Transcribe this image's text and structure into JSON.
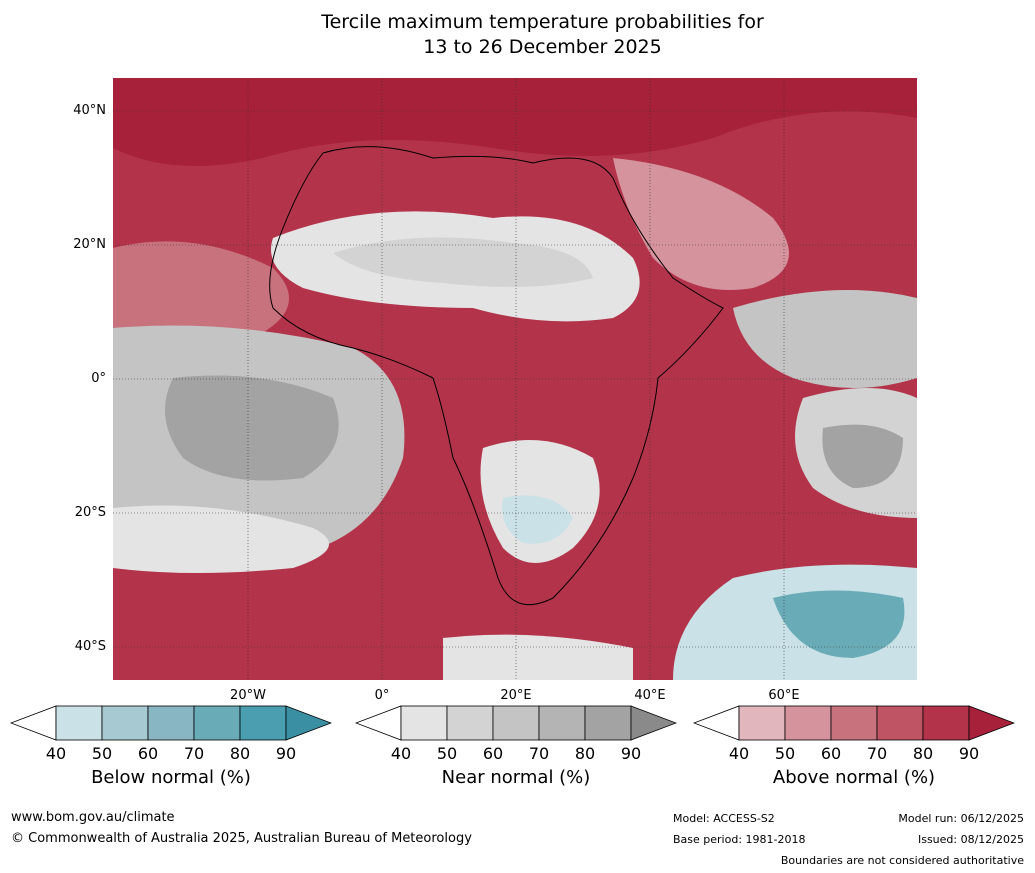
{
  "title_line1": "Tercile maximum temperature probabilities for",
  "title_line2": "13 to 26 December 2025",
  "lat_labels": [
    "40°N",
    "20°N",
    "0°",
    "20°S",
    "40°S"
  ],
  "lon_labels": [
    "20°W",
    "0°",
    "20°E",
    "40°E",
    "60°E"
  ],
  "legends": [
    {
      "title": "Below normal (%)",
      "ticks": [
        "40",
        "50",
        "60",
        "70",
        "80",
        "90"
      ],
      "colors": [
        "#ffffff",
        "#c9e1e7",
        "#a7c9d1",
        "#88b6c3",
        "#6aabb8",
        "#4a9eb0",
        "#3a8fa3"
      ]
    },
    {
      "title": "Near normal (%)",
      "ticks": [
        "40",
        "50",
        "60",
        "70",
        "80",
        "90"
      ],
      "colors": [
        "#ffffff",
        "#e4e4e4",
        "#d3d3d3",
        "#c4c4c4",
        "#b4b4b4",
        "#a3a3a3",
        "#8a8a8a"
      ]
    },
    {
      "title": "Above normal (%)",
      "ticks": [
        "40",
        "50",
        "60",
        "70",
        "80",
        "90"
      ],
      "colors": [
        "#ffffff",
        "#e2b6bd",
        "#d5949d",
        "#c8727e",
        "#bf5564",
        "#b3344a",
        "#a8213a"
      ]
    }
  ],
  "footer": {
    "website": "www.bom.gov.au/climate",
    "copyright": "© Commonwealth of Australia 2025, Australian Bureau of Meteorology",
    "model": "Model: ACCESS-S2",
    "base_period": "Base period: 1981-2018",
    "model_run": "Model run: 06/12/2025",
    "issued": "Issued: 08/12/2025",
    "disclaimer": "Boundaries are not considered authoritative"
  }
}
